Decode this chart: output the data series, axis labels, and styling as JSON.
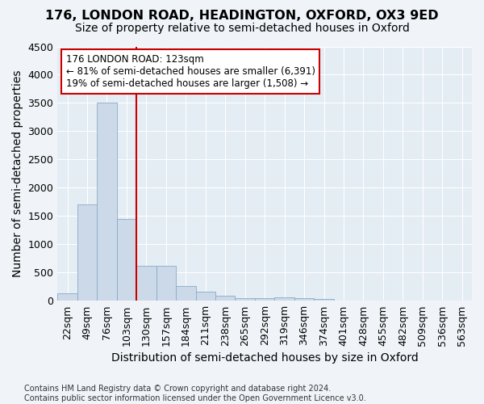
{
  "title1": "176, LONDON ROAD, HEADINGTON, OXFORD, OX3 9ED",
  "title2": "Size of property relative to semi-detached houses in Oxford",
  "xlabel": "Distribution of semi-detached houses by size in Oxford",
  "ylabel": "Number of semi-detached properties",
  "footnote": "Contains HM Land Registry data © Crown copyright and database right 2024.\nContains public sector information licensed under the Open Government Licence v3.0.",
  "categories": [
    "22sqm",
    "49sqm",
    "76sqm",
    "103sqm",
    "130sqm",
    "157sqm",
    "184sqm",
    "211sqm",
    "238sqm",
    "265sqm",
    "292sqm",
    "319sqm",
    "346sqm",
    "374sqm",
    "401sqm",
    "428sqm",
    "455sqm",
    "482sqm",
    "509sqm",
    "536sqm",
    "563sqm"
  ],
  "values": [
    130,
    1700,
    3500,
    1450,
    620,
    620,
    260,
    160,
    90,
    50,
    50,
    55,
    50,
    30,
    0,
    0,
    0,
    0,
    0,
    0,
    0
  ],
  "bar_color": "#ccd9e8",
  "bar_edge_color": "#8aaac8",
  "vline_index": 4,
  "annotation_title": "176 LONDON ROAD: 123sqm",
  "annotation_line1": "← 81% of semi-detached houses are smaller (6,391)",
  "annotation_line2": "19% of semi-detached houses are larger (1,508) →",
  "vline_color": "#cc0000",
  "annotation_box_color": "#ffffff",
  "annotation_box_edge": "#cc0000",
  "ylim": [
    0,
    4500
  ],
  "yticks": [
    0,
    500,
    1000,
    1500,
    2000,
    2500,
    3000,
    3500,
    4000,
    4500
  ],
  "bg_color": "#f0f4f8",
  "plot_bg_color": "#e4ecf4",
  "grid_color": "#ffffff",
  "title_fontsize": 11.5,
  "subtitle_fontsize": 10,
  "axis_label_fontsize": 10,
  "tick_fontsize": 9,
  "footnote_fontsize": 7
}
